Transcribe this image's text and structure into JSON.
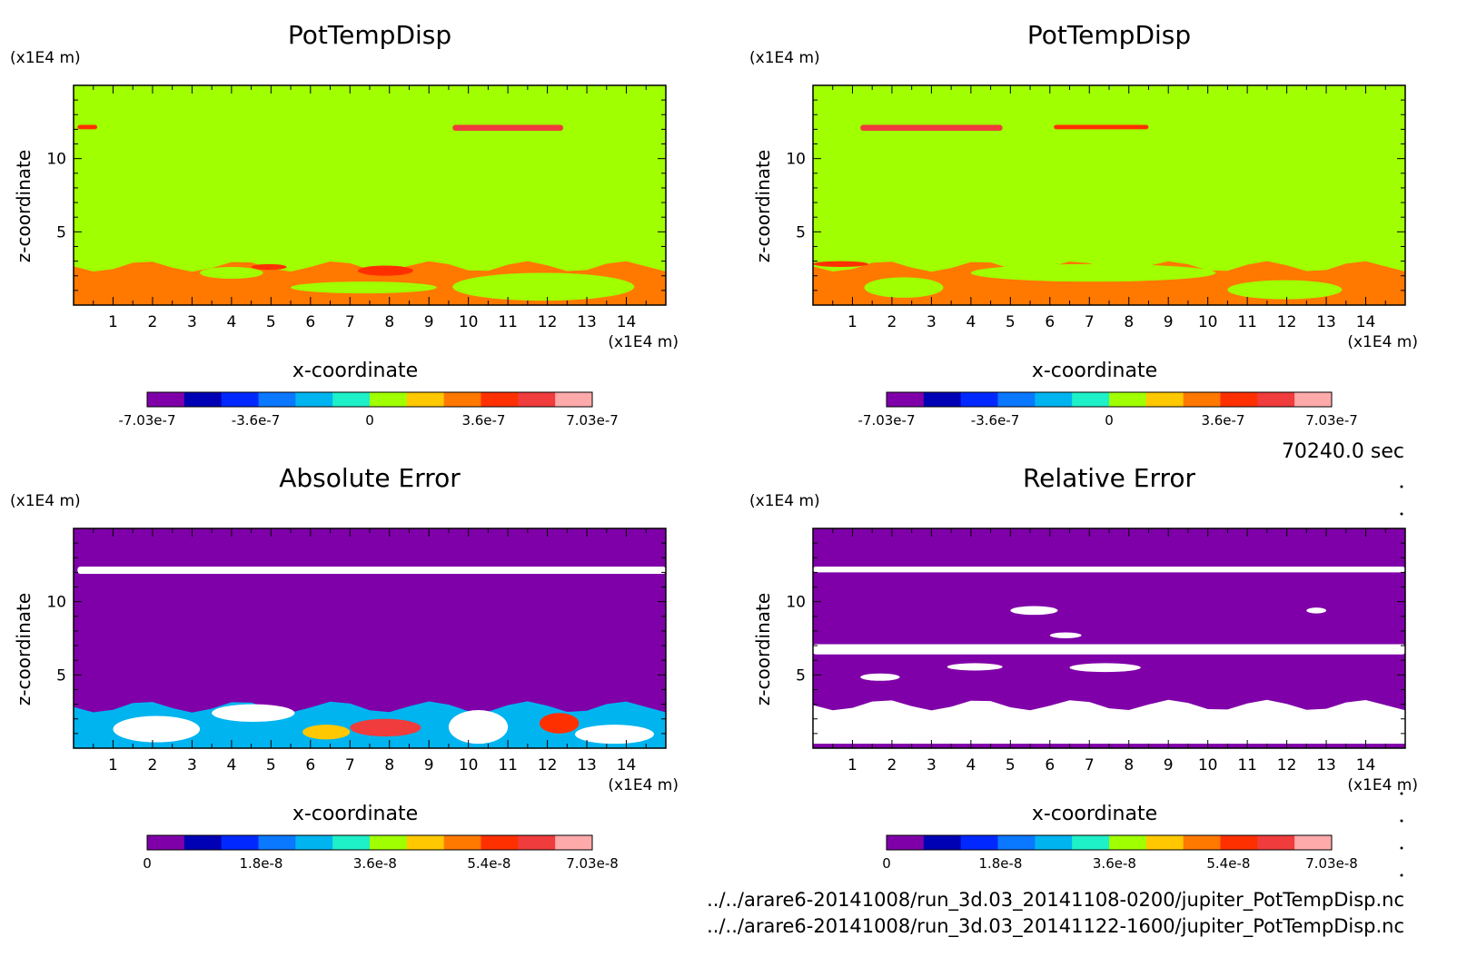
{
  "time_label": "70240.0 sec",
  "file_paths": [
    "../../arare6-20141008/run_3d.03_20141108-0200/jupiter_PotTempDisp.nc",
    "../../arare6-20141008/run_3d.03_20141122-1600/jupiter_PotTempDisp.nc"
  ],
  "colors": {
    "potential_scale": [
      "#7f00a8",
      "#0000b4",
      "#0028ff",
      "#0a78ff",
      "#00b4f0",
      "#1ef0c8",
      "#a0ff00",
      "#ffc800",
      "#ff7800",
      "#ff3000",
      "#f03c3c",
      "#ffaaaa"
    ],
    "error_scale": [
      "#7f00a8",
      "#0000b4",
      "#0028ff",
      "#0a78ff",
      "#00b4f0",
      "#1ef0c8",
      "#a0ff00",
      "#ffc800",
      "#ff7800",
      "#ff3000",
      "#f03c3c",
      "#ffaaaa"
    ]
  },
  "chart_data": [
    {
      "id": "p1",
      "type": "heatmap",
      "title": "PotTempDisp",
      "xlabel": "x-coordinate",
      "ylabel": "z-coordinate",
      "x_unit": "(x1E4 m)",
      "y_unit": "(x1E4 m)",
      "xlim": [
        0,
        15
      ],
      "ylim": [
        0,
        15
      ],
      "xticks": [
        1,
        2,
        3,
        4,
        5,
        6,
        7,
        8,
        9,
        10,
        11,
        12,
        13,
        14
      ],
      "yticks": [
        5,
        10
      ],
      "background_level": 0,
      "colorbar": {
        "min": -7.03e-07,
        "max": 7.03e-07,
        "levels": 12,
        "tick_labels": [
          "-7.03e-7",
          "-3.6e-7",
          "0",
          "3.6e-7",
          "7.03e-7"
        ],
        "tick_values": [
          -7.03e-07,
          -3.6e-07,
          0,
          3.6e-07,
          7.03e-07
        ],
        "scale": "potential"
      },
      "features": [
        {
          "kind": "band",
          "x": [
            0,
            15
          ],
          "z": [
            0,
            3.0
          ],
          "level": 3e-07
        },
        {
          "kind": "blob",
          "x": [
            3.2,
            4.8
          ],
          "z": [
            1.8,
            2.6
          ],
          "level": 0
        },
        {
          "kind": "blob",
          "x": [
            5.5,
            9.2
          ],
          "z": [
            0.8,
            1.6
          ],
          "level": 0
        },
        {
          "kind": "blob",
          "x": [
            9.6,
            14.2
          ],
          "z": [
            0.3,
            2.2
          ],
          "level": 0
        },
        {
          "kind": "blob",
          "x": [
            7.2,
            8.6
          ],
          "z": [
            2.0,
            2.7
          ],
          "level": 4.2e-07
        },
        {
          "kind": "blob",
          "x": [
            4.5,
            5.4
          ],
          "z": [
            2.4,
            2.8
          ],
          "level": 4.2e-07
        },
        {
          "kind": "streak",
          "x": [
            9.6,
            12.4
          ],
          "z": [
            11.9,
            12.3
          ],
          "level": 5.4e-07
        },
        {
          "kind": "streak",
          "x": [
            0.1,
            0.6
          ],
          "z": [
            12.0,
            12.3
          ],
          "level": 4.2e-07
        }
      ]
    },
    {
      "id": "p2",
      "type": "heatmap",
      "title": "PotTempDisp",
      "xlabel": "x-coordinate",
      "ylabel": "z-coordinate",
      "x_unit": "(x1E4 m)",
      "y_unit": "(x1E4 m)",
      "xlim": [
        0,
        15
      ],
      "ylim": [
        0,
        15
      ],
      "xticks": [
        1,
        2,
        3,
        4,
        5,
        6,
        7,
        8,
        9,
        10,
        11,
        12,
        13,
        14
      ],
      "yticks": [
        5,
        10
      ],
      "background_level": 0,
      "colorbar": {
        "min": -7.03e-07,
        "max": 7.03e-07,
        "levels": 12,
        "tick_labels": [
          "-7.03e-7",
          "-3.6e-7",
          "0",
          "3.6e-7",
          "7.03e-7"
        ],
        "tick_values": [
          -7.03e-07,
          -3.6e-07,
          0,
          3.6e-07,
          7.03e-07
        ],
        "scale": "potential"
      },
      "features": [
        {
          "kind": "band",
          "x": [
            0,
            15
          ],
          "z": [
            0,
            3.0
          ],
          "level": 3e-07
        },
        {
          "kind": "blob",
          "x": [
            1.3,
            3.3
          ],
          "z": [
            0.5,
            1.9
          ],
          "level": 0
        },
        {
          "kind": "blob",
          "x": [
            4.0,
            10.2
          ],
          "z": [
            1.6,
            2.8
          ],
          "level": 0
        },
        {
          "kind": "blob",
          "x": [
            10.5,
            13.4
          ],
          "z": [
            0.4,
            1.7
          ],
          "level": 0
        },
        {
          "kind": "blob",
          "x": [
            0.0,
            1.4
          ],
          "z": [
            2.6,
            3.0
          ],
          "level": 4.2e-07
        },
        {
          "kind": "streak",
          "x": [
            1.2,
            4.8
          ],
          "z": [
            11.9,
            12.3
          ],
          "level": 5.4e-07
        },
        {
          "kind": "streak",
          "x": [
            6.1,
            8.5
          ],
          "z": [
            12.0,
            12.3
          ],
          "level": 4.2e-07
        }
      ]
    },
    {
      "id": "p3",
      "type": "heatmap",
      "title": "Absolute Error",
      "xlabel": "x-coordinate",
      "ylabel": "z-coordinate",
      "x_unit": "(x1E4 m)",
      "y_unit": "(x1E4 m)",
      "xlim": [
        0,
        15
      ],
      "ylim": [
        0,
        15
      ],
      "xticks": [
        1,
        2,
        3,
        4,
        5,
        6,
        7,
        8,
        9,
        10,
        11,
        12,
        13,
        14
      ],
      "yticks": [
        5,
        10
      ],
      "background_level": 0,
      "colorbar": {
        "min": 0,
        "max": 7.03e-08,
        "levels": 12,
        "tick_labels": [
          "0",
          "1.8e-8",
          "3.6e-8",
          "5.4e-8",
          "7.03e-8"
        ],
        "tick_values": [
          0,
          1.8e-08,
          3.6e-08,
          5.4e-08,
          7.03e-08
        ],
        "scale": "error"
      },
      "features": [
        {
          "kind": "band",
          "x": [
            0,
            15
          ],
          "z": [
            0,
            3.2
          ],
          "level": 2.4e-08
        },
        {
          "kind": "streak",
          "x": [
            0.1,
            15
          ],
          "z": [
            11.9,
            12.4
          ],
          "level": "over"
        },
        {
          "kind": "blob",
          "x": [
            1.0,
            3.2
          ],
          "z": [
            0.4,
            2.2
          ],
          "level": "over"
        },
        {
          "kind": "blob",
          "x": [
            3.5,
            5.6
          ],
          "z": [
            1.8,
            3.0
          ],
          "level": "over"
        },
        {
          "kind": "blob",
          "x": [
            7.0,
            8.8
          ],
          "z": [
            0.8,
            2.0
          ],
          "level": 6e-08
        },
        {
          "kind": "blob",
          "x": [
            9.5,
            11.0
          ],
          "z": [
            0.3,
            2.6
          ],
          "level": "over"
        },
        {
          "kind": "blob",
          "x": [
            12.7,
            14.7
          ],
          "z": [
            0.3,
            1.6
          ],
          "level": "over"
        },
        {
          "kind": "blob",
          "x": [
            5.8,
            7.0
          ],
          "z": [
            0.6,
            1.6
          ],
          "level": 4.6e-08
        },
        {
          "kind": "blob",
          "x": [
            11.8,
            12.8
          ],
          "z": [
            1.0,
            2.4
          ],
          "level": 5.4e-08
        }
      ]
    },
    {
      "id": "p4",
      "type": "heatmap",
      "title": "Relative Error",
      "xlabel": "x-coordinate",
      "ylabel": "z-coordinate",
      "x_unit": "(x1E4 m)",
      "y_unit": "(x1E4 m)",
      "xlim": [
        0,
        15
      ],
      "ylim": [
        0,
        15
      ],
      "xticks": [
        1,
        2,
        3,
        4,
        5,
        6,
        7,
        8,
        9,
        10,
        11,
        12,
        13,
        14
      ],
      "yticks": [
        5,
        10
      ],
      "background_level": 0,
      "colorbar": {
        "min": 0,
        "max": 7.03e-08,
        "levels": 12,
        "tick_labels": [
          "0",
          "1.8e-8",
          "3.6e-8",
          "5.4e-8",
          "7.03e-8"
        ],
        "tick_values": [
          0,
          1.8e-08,
          3.6e-08,
          5.4e-08,
          7.03e-08
        ],
        "scale": "error"
      },
      "features": [
        {
          "kind": "band",
          "x": [
            0,
            15
          ],
          "z": [
            0.3,
            3.3
          ],
          "level": "over"
        },
        {
          "kind": "streak",
          "x": [
            0,
            15
          ],
          "z": [
            12.0,
            12.4
          ],
          "level": "over"
        },
        {
          "kind": "streak",
          "x": [
            0,
            15
          ],
          "z": [
            6.4,
            7.1
          ],
          "level": "over"
        },
        {
          "kind": "blob",
          "x": [
            5.0,
            6.2
          ],
          "z": [
            9.1,
            9.7
          ],
          "level": "over"
        },
        {
          "kind": "blob",
          "x": [
            12.5,
            13.0
          ],
          "z": [
            9.2,
            9.6
          ],
          "level": "over"
        },
        {
          "kind": "blob",
          "x": [
            6.0,
            6.8
          ],
          "z": [
            7.5,
            7.9
          ],
          "level": "over"
        },
        {
          "kind": "blob",
          "x": [
            1.2,
            2.2
          ],
          "z": [
            4.6,
            5.1
          ],
          "level": "over"
        },
        {
          "kind": "blob",
          "x": [
            3.4,
            4.8
          ],
          "z": [
            5.3,
            5.8
          ],
          "level": "over"
        },
        {
          "kind": "blob",
          "x": [
            6.5,
            8.3
          ],
          "z": [
            5.2,
            5.8
          ],
          "level": "over"
        }
      ]
    }
  ]
}
